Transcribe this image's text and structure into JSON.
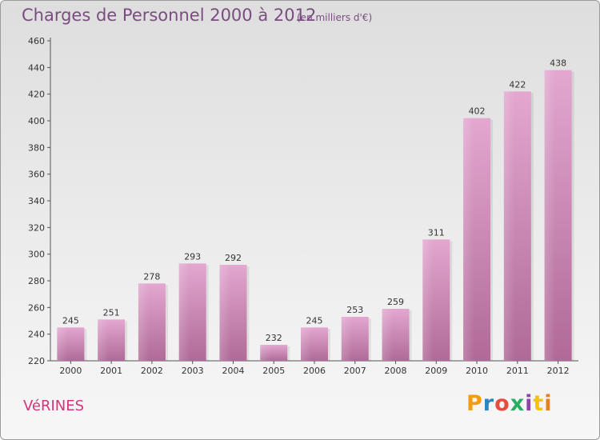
{
  "header": {
    "title": "Charges de Personnel 2000 à 2012",
    "subtitle": "(en milliers d'€)"
  },
  "footer": {
    "commune": "VéRINES",
    "brand": "Proxiti",
    "brand_colors": [
      "#f39c12",
      "#2e86c1",
      "#e74c3c",
      "#27ae60",
      "#8e44ad",
      "#f1c40f",
      "#e67e22"
    ]
  },
  "chart_data": {
    "type": "bar",
    "categories": [
      "2000",
      "2001",
      "2002",
      "2003",
      "2004",
      "2005",
      "2006",
      "2007",
      "2008",
      "2009",
      "2010",
      "2011",
      "2012"
    ],
    "values": [
      245,
      251,
      278,
      293,
      292,
      232,
      245,
      253,
      259,
      311,
      402,
      422,
      438
    ],
    "yticks": [
      220,
      240,
      260,
      280,
      300,
      320,
      340,
      360,
      380,
      400,
      420,
      440,
      460
    ],
    "ylim": [
      220,
      460
    ],
    "grid": false,
    "bar_color": "#c17aa8"
  }
}
